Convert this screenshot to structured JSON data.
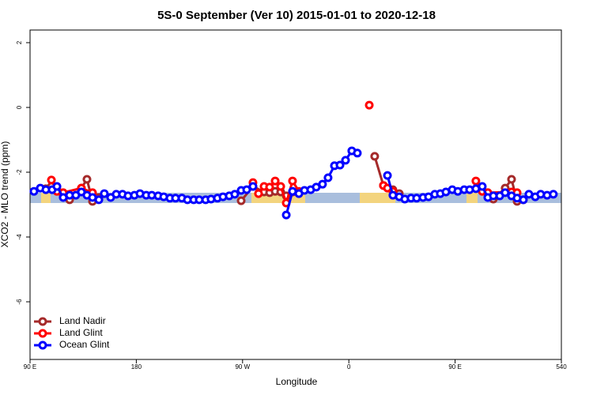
{
  "chart_data": {
    "type": "line",
    "title": "5S-0 September (Ver 10)   2015-01-01 to 2020-12-18",
    "x_label": "Longitude",
    "y_label": "XCO2 - MLO trend (ppm)",
    "xlim": [
      90,
      540
    ],
    "ylim": [
      -7.78,
      2.39
    ],
    "xticks": [
      {
        "value": 90,
        "label": "90 E"
      },
      180,
      {
        "value": 270,
        "label": "90 W"
      },
      {
        "value": 360,
        "label": "0"
      },
      {
        "value": 450,
        "label": "90 E"
      },
      540
    ],
    "yticks": [
      2,
      0,
      -2,
      -4,
      -6
    ],
    "legend": "bottom-left",
    "series": [
      {
        "name": "Land Nadir",
        "color": "#a52a2a",
        "x": [
          103.4,
          108.1,
          112.8,
          118.1,
          123.5,
          133.5,
          138.2,
          142.9,
          148.3,
          null,
          268.8,
          278.8,
          288.2,
          292.9,
          297.6,
          302.3,
          307,
          312.3,
          null,
          381.9,
          389.3,
          397.3,
          402.7,
          null,
          477.7,
          482.4,
          492.4,
          497.8,
          502.5,
          507.8
        ],
        "values": [
          -2.51,
          -2.44,
          -2.54,
          -2.71,
          -2.85,
          -2.49,
          -2.22,
          -2.9,
          -2.78,
          null,
          -2.88,
          -2.44,
          -2.61,
          -2.63,
          -2.59,
          -2.61,
          -2.73,
          -2.61,
          null,
          -1.51,
          -2.41,
          -2.54,
          -2.66,
          null,
          -2.63,
          -2.83,
          -2.49,
          -2.22,
          -2.9,
          -2.85
        ]
      },
      {
        "name": "Land Glint",
        "color": "#ff0000",
        "x": [
          108.1,
          112.8,
          118.1,
          133.5,
          142.9,
          null,
          278.8,
          283.5,
          288.2,
          292.9,
          297.6,
          302.3,
          307,
          312.3,
          317.7,
          null,
          377.3,
          null,
          389.3,
          392.7,
          397.3,
          null,
          467.6,
          473,
          477.7,
          497.8,
          502.5
        ],
        "values": [
          -2.24,
          -2.59,
          -2.63,
          -2.49,
          -2.63,
          null,
          -2.32,
          -2.66,
          -2.44,
          -2.46,
          -2.27,
          -2.44,
          -2.95,
          -2.27,
          -2.59,
          null,
          0.07,
          null,
          -2.41,
          -2.49,
          -2.59,
          null,
          -2.27,
          -2.59,
          -2.63,
          -2.61,
          -2.63
        ]
      },
      {
        "name": "Ocean Glint",
        "color": "#0000ff",
        "x": [
          93.3,
          98.7,
          103.4,
          108.7,
          112.8,
          118.1,
          123.5,
          128.8,
          133.5,
          138.2,
          142.9,
          148.3,
          152.9,
          158.3,
          163,
          168.3,
          173,
          178.4,
          183.1,
          188.4,
          193.1,
          198.5,
          203.2,
          208.5,
          213.2,
          218.6,
          223.3,
          228.6,
          233.3,
          238.7,
          243.3,
          248.7,
          253.4,
          258.7,
          263.4,
          268.8,
          273.5,
          278.8,
          null,
          307,
          312.3,
          317.7,
          322.4,
          327.7,
          332.4,
          337.7,
          342.4,
          347.8,
          352.5,
          357.2,
          362.5,
          367.2,
          null,
          392.7,
          397.3,
          402.7,
          407.4,
          412.7,
          417.4,
          422.8,
          427.5,
          432.8,
          437.5,
          442.2,
          447.6,
          452.3,
          457.7,
          462.3,
          467.6,
          473,
          477.7,
          482.4,
          487.8,
          492.4,
          497.8,
          502.5,
          507.8,
          512.5,
          517.9,
          522.5,
          527.9,
          533.2
        ],
        "values": [
          -2.59,
          -2.49,
          -2.54,
          -2.54,
          -2.44,
          -2.78,
          -2.71,
          -2.71,
          -2.61,
          -2.71,
          -2.78,
          -2.85,
          -2.66,
          -2.78,
          -2.68,
          -2.68,
          -2.73,
          -2.71,
          -2.66,
          -2.71,
          -2.71,
          -2.73,
          -2.76,
          -2.8,
          -2.8,
          -2.8,
          -2.85,
          -2.85,
          -2.85,
          -2.85,
          -2.83,
          -2.8,
          -2.76,
          -2.73,
          -2.68,
          -2.56,
          -2.54,
          -2.44,
          null,
          -3.32,
          -2.59,
          -2.66,
          -2.56,
          -2.54,
          -2.46,
          -2.37,
          -2.17,
          -1.8,
          -1.78,
          -1.63,
          -1.34,
          -1.41,
          null,
          -2.1,
          -2.71,
          -2.76,
          -2.83,
          -2.8,
          -2.8,
          -2.78,
          -2.76,
          -2.68,
          -2.66,
          -2.61,
          -2.54,
          -2.59,
          -2.54,
          -2.54,
          -2.51,
          -2.44,
          -2.78,
          -2.73,
          -2.73,
          -2.63,
          -2.73,
          -2.8,
          -2.85,
          -2.68,
          -2.76,
          -2.68,
          -2.71,
          -2.68
        ]
      }
    ]
  }
}
